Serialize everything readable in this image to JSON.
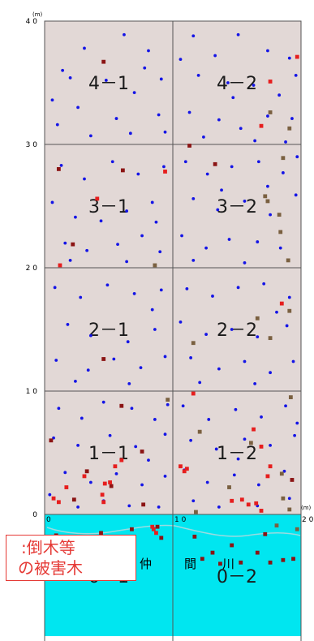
{
  "chart_data": {
    "type": "scatter",
    "x_unit": "(m)",
    "y_unit": "(m)",
    "xlim": [
      0,
      20
    ],
    "ylim": [
      -10,
      40
    ],
    "x_ticks": [
      {
        "value": 0,
        "label": "0"
      },
      {
        "value": 10,
        "label": "1 0"
      },
      {
        "value": 20,
        "label": "2 0"
      }
    ],
    "y_ticks": [
      {
        "value": 0,
        "label": "0"
      },
      {
        "value": 10,
        "label": "1 0"
      },
      {
        "value": 20,
        "label": "2 0"
      },
      {
        "value": 30,
        "label": "3 0"
      },
      {
        "value": 40,
        "label": "4 0"
      }
    ],
    "plots": [
      {
        "label": "4－1",
        "x": 5,
        "y": 35
      },
      {
        "label": "4－2",
        "x": 15,
        "y": 35
      },
      {
        "label": "3－1",
        "x": 5,
        "y": 25
      },
      {
        "label": "3－2",
        "x": 15,
        "y": 25
      },
      {
        "label": "2－1",
        "x": 5,
        "y": 15
      },
      {
        "label": "2－2",
        "x": 15,
        "y": 15
      },
      {
        "label": "1－1",
        "x": 5,
        "y": 5
      },
      {
        "label": "1－2",
        "x": 15,
        "y": 5
      },
      {
        "label": "0－1",
        "x": 5,
        "y": -5
      },
      {
        "label": "0－2",
        "x": 15,
        "y": -5
      }
    ],
    "river_label_chars": [
      "仲",
      "間",
      "川"
    ],
    "colors": {
      "land": "#e2d8d6",
      "river": "#00e6f0",
      "grid": "#555555",
      "tree": "#1414e6",
      "damaged_dark_red": "#8b1414",
      "damaged_red": "#e61e1e",
      "damaged_brown": "#7a6040",
      "legend": "#e53935"
    },
    "series": [
      {
        "color": "#1414e6",
        "points": [
          [
            6.2,
            38.9
          ],
          [
            8.1,
            37.6
          ],
          [
            3.1,
            37.8
          ],
          [
            1.4,
            36.0
          ],
          [
            4.8,
            35.2
          ],
          [
            7.0,
            34.2
          ],
          [
            9.1,
            35.3
          ],
          [
            2.6,
            33.0
          ],
          [
            5.6,
            32.1
          ],
          [
            8.9,
            32.4
          ],
          [
            1.0,
            31.6
          ],
          [
            3.6,
            30.7
          ],
          [
            6.7,
            30.9
          ],
          [
            9.4,
            31.0
          ],
          [
            2.0,
            35.4
          ],
          [
            7.8,
            36.2
          ],
          [
            0.6,
            33.6
          ],
          [
            11.6,
            38.8
          ],
          [
            13.3,
            37.2
          ],
          [
            15.1,
            38.9
          ],
          [
            17.4,
            37.6
          ],
          [
            19.1,
            37.0
          ],
          [
            12.0,
            35.6
          ],
          [
            14.3,
            35.0
          ],
          [
            16.3,
            34.8
          ],
          [
            18.3,
            34.0
          ],
          [
            19.6,
            35.6
          ],
          [
            11.3,
            32.6
          ],
          [
            13.6,
            32.0
          ],
          [
            15.3,
            31.3
          ],
          [
            17.4,
            32.3
          ],
          [
            19.3,
            32.1
          ],
          [
            12.4,
            30.6
          ],
          [
            16.4,
            30.3
          ],
          [
            18.8,
            30.2
          ],
          [
            14.7,
            33.8
          ],
          [
            10.6,
            36.9
          ],
          [
            1.3,
            28.3
          ],
          [
            3.1,
            27.2
          ],
          [
            5.3,
            28.6
          ],
          [
            7.3,
            27.6
          ],
          [
            9.3,
            28.2
          ],
          [
            0.6,
            25.3
          ],
          [
            2.4,
            24.1
          ],
          [
            4.4,
            23.8
          ],
          [
            6.4,
            24.6
          ],
          [
            8.4,
            25.3
          ],
          [
            1.6,
            22.0
          ],
          [
            3.3,
            21.4
          ],
          [
            5.7,
            21.9
          ],
          [
            7.6,
            22.6
          ],
          [
            9.0,
            21.3
          ],
          [
            2.0,
            20.6
          ],
          [
            6.4,
            20.5
          ],
          [
            8.7,
            23.7
          ],
          [
            11.0,
            28.6
          ],
          [
            12.7,
            27.6
          ],
          [
            14.6,
            28.2
          ],
          [
            16.7,
            28.6
          ],
          [
            18.6,
            27.7
          ],
          [
            19.7,
            29.0
          ],
          [
            11.6,
            25.6
          ],
          [
            13.5,
            24.7
          ],
          [
            15.6,
            25.4
          ],
          [
            17.6,
            24.3
          ],
          [
            19.6,
            25.9
          ],
          [
            10.7,
            22.6
          ],
          [
            12.6,
            21.6
          ],
          [
            14.4,
            22.3
          ],
          [
            16.6,
            22.1
          ],
          [
            18.4,
            21.6
          ],
          [
            11.6,
            20.6
          ],
          [
            15.6,
            20.4
          ],
          [
            17.4,
            26.6
          ],
          [
            13.8,
            26.3
          ],
          [
            0.8,
            18.4
          ],
          [
            2.8,
            17.6
          ],
          [
            4.9,
            18.6
          ],
          [
            7.0,
            17.9
          ],
          [
            9.1,
            18.2
          ],
          [
            1.8,
            15.4
          ],
          [
            3.6,
            14.5
          ],
          [
            6.5,
            14.0
          ],
          [
            8.6,
            15.0
          ],
          [
            0.9,
            12.5
          ],
          [
            3.4,
            11.7
          ],
          [
            5.4,
            12.6
          ],
          [
            7.5,
            11.9
          ],
          [
            9.4,
            12.8
          ],
          [
            2.4,
            10.8
          ],
          [
            6.6,
            10.6
          ],
          [
            8.4,
            16.6
          ],
          [
            11.1,
            18.3
          ],
          [
            13.1,
            17.7
          ],
          [
            15.1,
            18.4
          ],
          [
            17.1,
            18.7
          ],
          [
            19.1,
            17.6
          ],
          [
            10.6,
            15.6
          ],
          [
            12.6,
            14.6
          ],
          [
            14.6,
            15.0
          ],
          [
            16.6,
            14.4
          ],
          [
            18.9,
            15.3
          ],
          [
            11.4,
            12.7
          ],
          [
            13.6,
            11.8
          ],
          [
            15.6,
            12.4
          ],
          [
            17.6,
            11.5
          ],
          [
            19.4,
            12.4
          ],
          [
            12.1,
            10.7
          ],
          [
            16.4,
            10.6
          ],
          [
            18.1,
            16.4
          ],
          [
            1.1,
            8.6
          ],
          [
            2.9,
            7.8
          ],
          [
            4.6,
            9.1
          ],
          [
            6.8,
            8.6
          ],
          [
            8.6,
            7.7
          ],
          [
            9.6,
            8.9
          ],
          [
            0.7,
            6.2
          ],
          [
            2.6,
            5.6
          ],
          [
            5.1,
            6.4
          ],
          [
            7.1,
            5.5
          ],
          [
            9.4,
            6.5
          ],
          [
            1.6,
            3.4
          ],
          [
            3.6,
            2.6
          ],
          [
            5.6,
            3.3
          ],
          [
            7.6,
            2.4
          ],
          [
            9.4,
            3.1
          ],
          [
            2.6,
            0.6
          ],
          [
            4.6,
            1.1
          ],
          [
            6.6,
            0.7
          ],
          [
            8.9,
            0.6
          ],
          [
            0.4,
            1.6
          ],
          [
            8.1,
            4.4
          ],
          [
            10.8,
            8.8
          ],
          [
            12.8,
            7.7
          ],
          [
            14.9,
            8.5
          ],
          [
            16.9,
            7.9
          ],
          [
            18.8,
            8.8
          ],
          [
            19.7,
            7.4
          ],
          [
            11.4,
            6.0
          ],
          [
            13.4,
            5.3
          ],
          [
            15.6,
            6.1
          ],
          [
            17.6,
            5.6
          ],
          [
            19.5,
            6.4
          ],
          [
            10.9,
            3.6
          ],
          [
            12.7,
            2.6
          ],
          [
            14.8,
            3.2
          ],
          [
            16.7,
            2.4
          ],
          [
            18.7,
            3.5
          ],
          [
            11.6,
            1.1
          ],
          [
            13.6,
            0.6
          ],
          [
            16.6,
            0.7
          ],
          [
            19.1,
            1.3
          ],
          [
            15.1,
            4.5
          ]
        ]
      },
      {
        "color": "#8b1414",
        "points": [
          [
            4.6,
            36.7
          ],
          [
            11.3,
            29.9
          ],
          [
            13.3,
            28.4
          ],
          [
            1.1,
            28.0
          ],
          [
            6.1,
            27.9
          ],
          [
            2.2,
            21.9
          ],
          [
            4.6,
            12.6
          ],
          [
            6.0,
            8.8
          ],
          [
            0.5,
            6.0
          ],
          [
            3.3,
            3.5
          ],
          [
            7.6,
            5.1
          ],
          [
            7.7,
            0.8
          ],
          [
            2.3,
            1.2
          ],
          [
            5.2,
            2.3
          ],
          [
            19.3,
            2.8
          ],
          [
            0.9,
            -1.7
          ],
          [
            2.8,
            -1.8
          ],
          [
            4.4,
            -1.5
          ],
          [
            6.8,
            -1.2
          ],
          [
            8.8,
            -1.0
          ],
          [
            9.1,
            -1.9
          ],
          [
            11.7,
            -1.8
          ],
          [
            12.3,
            -3.6
          ],
          [
            13.1,
            -3.1
          ],
          [
            14.6,
            -2.5
          ],
          [
            15.3,
            -3.9
          ],
          [
            16.6,
            -3.1
          ],
          [
            17.6,
            -3.9
          ],
          [
            18.6,
            -3.7
          ],
          [
            19.4,
            -3.6
          ],
          [
            13.7,
            -4.0
          ],
          [
            17.2,
            -1.6
          ]
        ]
      },
      {
        "color": "#e61e1e",
        "points": [
          [
            4.1,
            25.6
          ],
          [
            9.4,
            27.8
          ],
          [
            17.6,
            35.1
          ],
          [
            19.7,
            37.1
          ],
          [
            18.5,
            17.1
          ],
          [
            16.9,
            31.5
          ],
          [
            11.6,
            9.8
          ],
          [
            16.3,
            6.9
          ],
          [
            16.9,
            5.5
          ],
          [
            17.6,
            3.9
          ],
          [
            14.6,
            1.1
          ],
          [
            15.4,
            1.2
          ],
          [
            15.9,
            0.8
          ],
          [
            16.5,
            0.9
          ],
          [
            10.9,
            3.5
          ],
          [
            10.6,
            3.9
          ],
          [
            11.1,
            3.7
          ],
          [
            16.9,
            0.3
          ],
          [
            1.2,
            20.2
          ],
          [
            5.5,
            3.9
          ],
          [
            5.1,
            2.6
          ],
          [
            0.7,
            1.3
          ],
          [
            4.6,
            1.0
          ],
          [
            3.1,
            3.1
          ],
          [
            1.7,
            2.2
          ],
          [
            1.1,
            1.0
          ],
          [
            4.7,
            2.5
          ],
          [
            4.5,
            1.6
          ],
          [
            6.0,
            4.4
          ],
          [
            8.5,
            -1.2
          ],
          [
            8.7,
            -1.5
          ],
          [
            8.4,
            -1.0
          ],
          [
            17.4,
            3.1
          ]
        ]
      },
      {
        "color": "#7a6040",
        "points": [
          [
            17.6,
            32.6
          ],
          [
            19.1,
            31.3
          ],
          [
            18.6,
            28.9
          ],
          [
            18.3,
            24.3
          ],
          [
            19.0,
            20.6
          ],
          [
            17.4,
            25.4
          ],
          [
            17.2,
            25.8
          ],
          [
            18.4,
            22.9
          ],
          [
            8.6,
            20.2
          ],
          [
            16.6,
            15.9
          ],
          [
            17.6,
            14.3
          ],
          [
            19.1,
            16.5
          ],
          [
            11.6,
            13.9
          ],
          [
            19.2,
            9.5
          ],
          [
            9.6,
            9.3
          ],
          [
            12.1,
            6.7
          ],
          [
            18.5,
            3.3
          ],
          [
            16.1,
            5.8
          ],
          [
            18.6,
            1.3
          ],
          [
            14.4,
            2.2
          ],
          [
            19.1,
            0.4
          ],
          [
            18.1,
            -0.9
          ],
          [
            19.7,
            -1.2
          ],
          [
            11.8,
            0.2
          ]
        ]
      }
    ]
  },
  "legend": {
    "line1": ":倒木等",
    "line2": "の被害木"
  }
}
